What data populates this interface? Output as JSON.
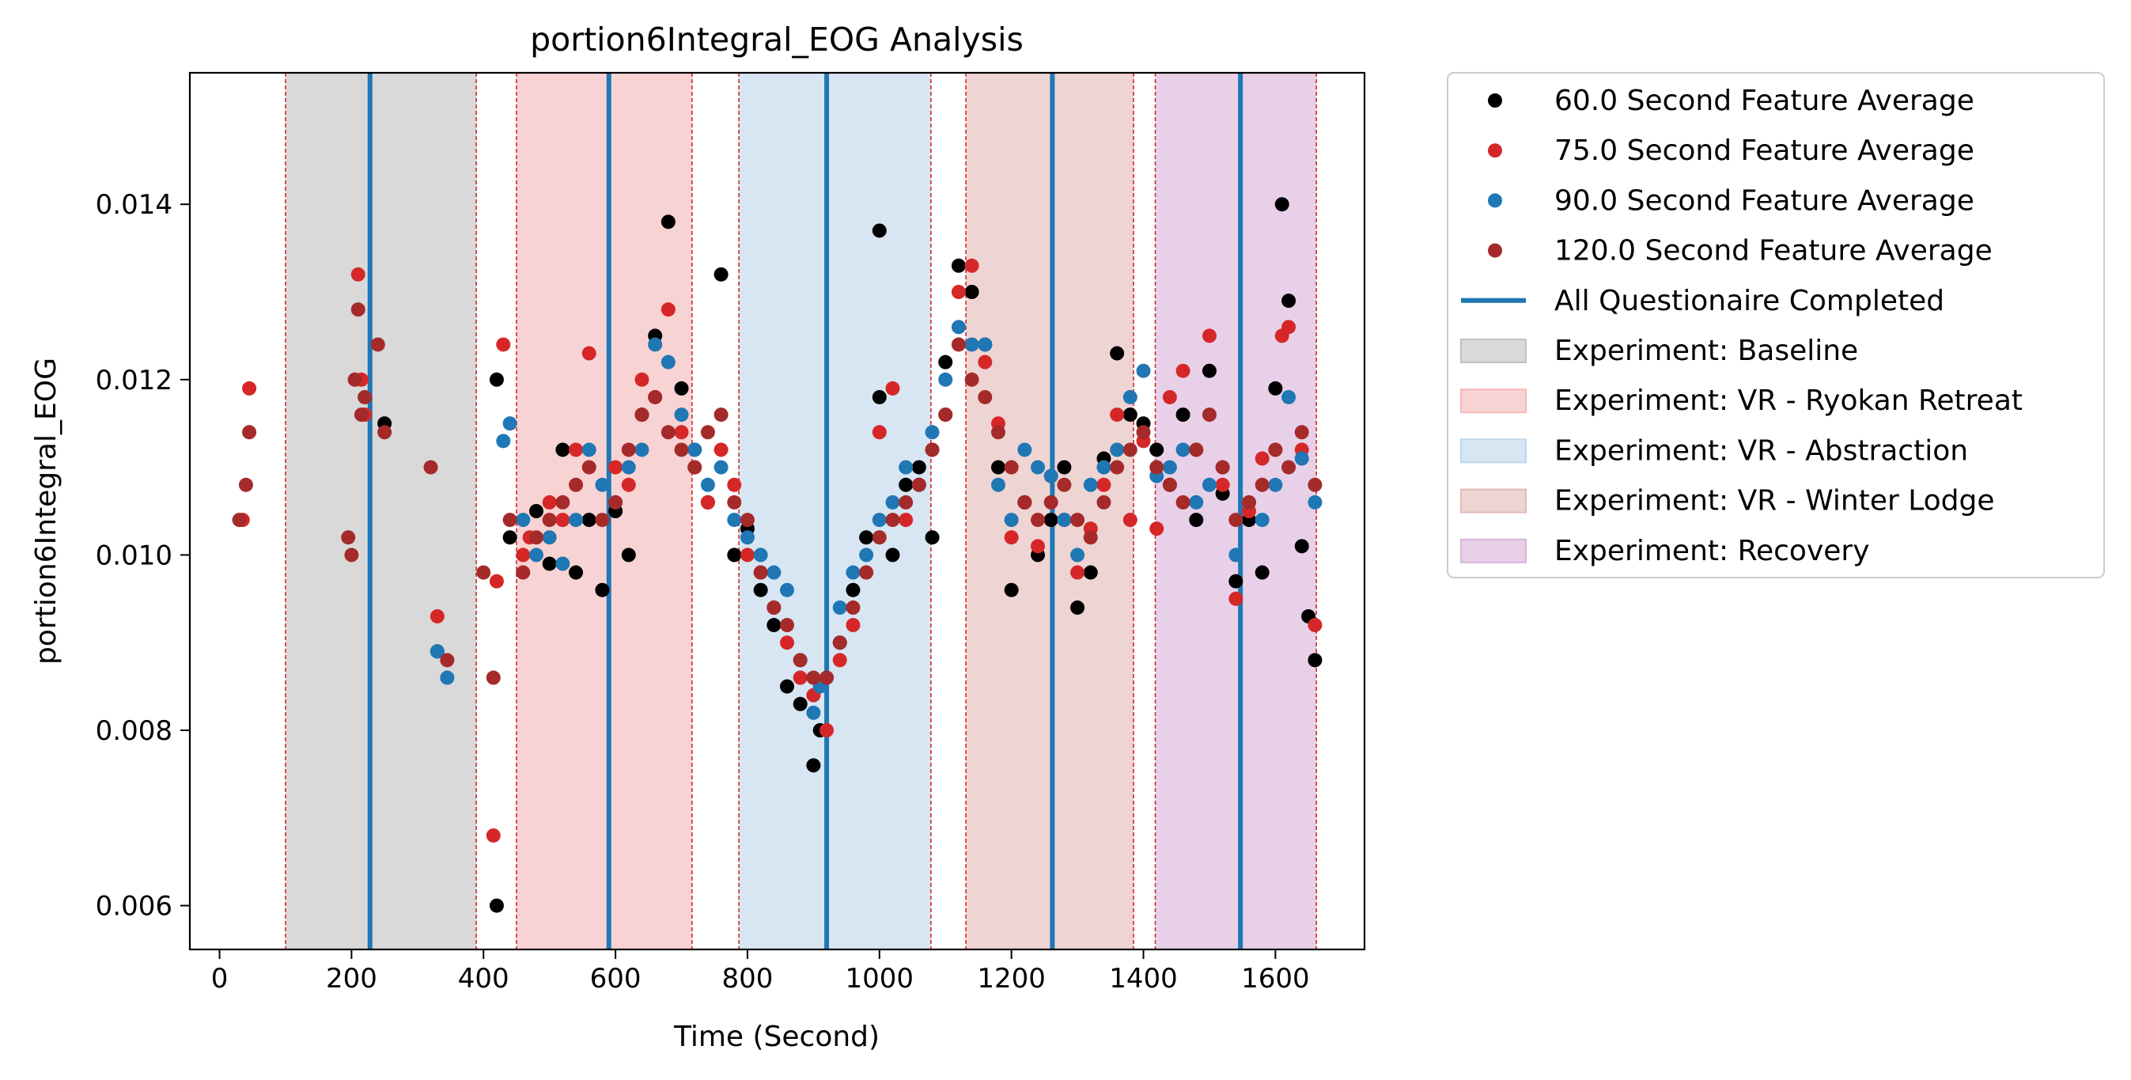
{
  "chart_data": {
    "type": "scatter",
    "title": "portion6Integral_EOG Analysis",
    "xlabel": "Time (Second)",
    "ylabel": "portion6Integral_EOG",
    "xlim": [
      -45,
      1735
    ],
    "ylim": [
      0.0055,
      0.0155
    ],
    "xticks": [
      0,
      200,
      400,
      600,
      800,
      1000,
      1200,
      1400,
      1600
    ],
    "xtick_labels": [
      "0",
      "200",
      "400",
      "600",
      "800",
      "1000",
      "1200",
      "1400",
      "1600"
    ],
    "yticks": [
      0.006,
      0.008,
      0.01,
      0.012,
      0.014
    ],
    "ytick_labels": [
      "0.006",
      "0.008",
      "0.010",
      "0.012",
      "0.014"
    ],
    "grid": false,
    "legend_position": "outside-right",
    "legend": [
      {
        "label": "60.0 Second Feature Average",
        "kind": "marker",
        "color": "#000000"
      },
      {
        "label": "75.0 Second Feature Average",
        "kind": "marker",
        "color": "#d62728"
      },
      {
        "label": "90.0 Second Feature Average",
        "kind": "marker",
        "color": "#1f77b4"
      },
      {
        "label": "120.0 Second Feature Average",
        "kind": "marker",
        "color": "#a52a2a"
      },
      {
        "label": "All Questionaire Completed",
        "kind": "line",
        "color": "#1f77b4"
      },
      {
        "label": "Experiment: Baseline",
        "kind": "patch",
        "color": "#bfbfbf"
      },
      {
        "label": "Experiment: VR - Ryokan Retreat",
        "kind": "patch",
        "color": "#f4b6b8"
      },
      {
        "label": "Experiment: VR - Abstraction",
        "kind": "patch",
        "color": "#bcd6ea"
      },
      {
        "label": "Experiment: VR - Winter Lodge",
        "kind": "patch",
        "color": "#e2b9b6"
      },
      {
        "label": "Experiment: Recovery",
        "kind": "patch",
        "color": "#d9b3d9"
      }
    ],
    "regions": [
      {
        "name": "Experiment: Baseline",
        "start": 100,
        "end": 389,
        "color": "#bfbfbf"
      },
      {
        "name": "Experiment: VR - Ryokan Retreat",
        "start": 450,
        "end": 716,
        "color": "#f4b6b8"
      },
      {
        "name": "Experiment: VR - Abstraction",
        "start": 787,
        "end": 1078,
        "color": "#bcd6ea"
      },
      {
        "name": "Experiment: VR - Winter Lodge",
        "start": 1131,
        "end": 1385,
        "color": "#e2b9b6"
      },
      {
        "name": "Experiment: Recovery",
        "start": 1418,
        "end": 1662,
        "color": "#d9b3d9"
      }
    ],
    "questionnaire_lines": [
      228,
      590,
      920,
      1262,
      1547
    ],
    "series": [
      {
        "name": "60.0 Second Feature Average",
        "color": "#000000",
        "x": [
          250,
          330,
          420,
          420,
          440,
          480,
          500,
          520,
          540,
          560,
          580,
          600,
          620,
          640,
          660,
          680,
          700,
          720,
          740,
          760,
          780,
          800,
          820,
          840,
          860,
          880,
          900,
          910,
          940,
          960,
          980,
          1000,
          1000,
          1020,
          1040,
          1060,
          1080,
          1100,
          1120,
          1140,
          1160,
          1180,
          1200,
          1220,
          1240,
          1260,
          1280,
          1300,
          1320,
          1340,
          1360,
          1380,
          1400,
          1420,
          1440,
          1460,
          1480,
          1500,
          1520,
          1540,
          1560,
          1580,
          1600,
          1610,
          1620,
          1640,
          1650,
          1660
        ],
        "y": [
          0.0115,
          0.0089,
          0.006,
          0.012,
          0.0102,
          0.0105,
          0.0099,
          0.0112,
          0.0098,
          0.0104,
          0.0096,
          0.0105,
          0.01,
          0.0116,
          0.0125,
          0.0138,
          0.0119,
          0.0112,
          0.0106,
          0.0132,
          0.01,
          0.0103,
          0.0096,
          0.0092,
          0.0085,
          0.0083,
          0.0076,
          0.008,
          0.009,
          0.0096,
          0.0102,
          0.0137,
          0.0118,
          0.01,
          0.0108,
          0.011,
          0.0102,
          0.0122,
          0.0133,
          0.013,
          0.0124,
          0.011,
          0.0096,
          0.0106,
          0.01,
          0.0104,
          0.011,
          0.0094,
          0.0098,
          0.0111,
          0.0123,
          0.0116,
          0.0115,
          0.0112,
          0.0108,
          0.0116,
          0.0104,
          0.0121,
          0.0107,
          0.0097,
          0.0104,
          0.0098,
          0.0119,
          0.014,
          0.0129,
          0.0101,
          0.0093,
          0.0088
        ]
      },
      {
        "name": "75.0 Second Feature Average",
        "color": "#d62728",
        "x": [
          35,
          45,
          210,
          215,
          220,
          330,
          415,
          420,
          430,
          460,
          470,
          500,
          520,
          540,
          560,
          600,
          620,
          640,
          660,
          680,
          700,
          720,
          740,
          760,
          780,
          800,
          820,
          840,
          860,
          880,
          900,
          920,
          940,
          960,
          980,
          1000,
          1020,
          1040,
          1060,
          1080,
          1100,
          1120,
          1140,
          1160,
          1180,
          1200,
          1220,
          1240,
          1260,
          1280,
          1300,
          1320,
          1340,
          1360,
          1380,
          1400,
          1420,
          1440,
          1460,
          1480,
          1500,
          1520,
          1540,
          1560,
          1580,
          1600,
          1610,
          1620,
          1640,
          1660
        ],
        "y": [
          0.0104,
          0.0119,
          0.0132,
          0.012,
          0.0116,
          0.0093,
          0.0068,
          0.0097,
          0.0124,
          0.01,
          0.0102,
          0.0106,
          0.0104,
          0.0112,
          0.0123,
          0.011,
          0.0108,
          0.012,
          0.0118,
          0.0128,
          0.0114,
          0.011,
          0.0106,
          0.0112,
          0.0108,
          0.01,
          0.0098,
          0.0094,
          0.009,
          0.0086,
          0.0084,
          0.008,
          0.0088,
          0.0092,
          0.0098,
          0.0114,
          0.0119,
          0.0104,
          0.0108,
          0.0112,
          0.0116,
          0.013,
          0.0133,
          0.0122,
          0.0115,
          0.0102,
          0.0106,
          0.0101,
          0.0109,
          0.0104,
          0.0098,
          0.0103,
          0.0108,
          0.0116,
          0.0104,
          0.0113,
          0.0103,
          0.0118,
          0.0121,
          0.0112,
          0.0125,
          0.0108,
          0.0095,
          0.0105,
          0.0111,
          0.0112,
          0.0125,
          0.0126,
          0.0112,
          0.0092
        ]
      },
      {
        "name": "90.0 Second Feature Average",
        "color": "#1f77b4",
        "x": [
          330,
          345,
          430,
          440,
          460,
          480,
          500,
          520,
          540,
          560,
          580,
          600,
          620,
          640,
          660,
          680,
          700,
          720,
          740,
          760,
          780,
          800,
          820,
          840,
          860,
          880,
          900,
          910,
          920,
          940,
          960,
          980,
          1000,
          1020,
          1040,
          1060,
          1080,
          1100,
          1120,
          1140,
          1160,
          1180,
          1200,
          1220,
          1240,
          1260,
          1280,
          1300,
          1320,
          1340,
          1360,
          1380,
          1400,
          1420,
          1440,
          1460,
          1480,
          1500,
          1520,
          1540,
          1560,
          1580,
          1600,
          1620,
          1640,
          1660
        ],
        "y": [
          0.0089,
          0.0086,
          0.0113,
          0.0115,
          0.0104,
          0.01,
          0.0102,
          0.0099,
          0.0104,
          0.0112,
          0.0108,
          0.0106,
          0.011,
          0.0112,
          0.0124,
          0.0122,
          0.0116,
          0.0112,
          0.0108,
          0.011,
          0.0104,
          0.0102,
          0.01,
          0.0098,
          0.0096,
          0.0088,
          0.0082,
          0.0085,
          0.0086,
          0.0094,
          0.0098,
          0.01,
          0.0104,
          0.0106,
          0.011,
          0.0108,
          0.0114,
          0.012,
          0.0126,
          0.0124,
          0.0124,
          0.0108,
          0.0104,
          0.0112,
          0.011,
          0.0109,
          0.0104,
          0.01,
          0.0108,
          0.011,
          0.0112,
          0.0118,
          0.0121,
          0.0109,
          0.011,
          0.0112,
          0.0106,
          0.0108,
          0.011,
          0.01,
          0.0106,
          0.0104,
          0.0108,
          0.0118,
          0.0111,
          0.0106
        ]
      },
      {
        "name": "120.0 Second Feature Average",
        "color": "#a52a2a",
        "x": [
          30,
          40,
          45,
          195,
          200,
          205,
          210,
          215,
          220,
          240,
          250,
          320,
          345,
          400,
          415,
          440,
          460,
          480,
          500,
          520,
          540,
          560,
          580,
          600,
          620,
          640,
          660,
          680,
          700,
          720,
          740,
          760,
          780,
          800,
          820,
          840,
          860,
          880,
          900,
          920,
          940,
          960,
          980,
          1000,
          1020,
          1040,
          1060,
          1080,
          1100,
          1120,
          1140,
          1160,
          1180,
          1200,
          1220,
          1240,
          1260,
          1280,
          1300,
          1320,
          1340,
          1360,
          1380,
          1400,
          1420,
          1440,
          1460,
          1480,
          1500,
          1520,
          1540,
          1560,
          1580,
          1600,
          1620,
          1640,
          1660
        ],
        "y": [
          0.0104,
          0.0108,
          0.0114,
          0.0102,
          0.01,
          0.012,
          0.0128,
          0.0116,
          0.0118,
          0.0124,
          0.0114,
          0.011,
          0.0088,
          0.0098,
          0.0086,
          0.0104,
          0.0098,
          0.0102,
          0.0104,
          0.0106,
          0.0108,
          0.011,
          0.0104,
          0.0106,
          0.0112,
          0.0116,
          0.0118,
          0.0114,
          0.0112,
          0.011,
          0.0114,
          0.0116,
          0.0106,
          0.0104,
          0.0098,
          0.0094,
          0.0092,
          0.0088,
          0.0086,
          0.0086,
          0.009,
          0.0094,
          0.0098,
          0.0102,
          0.0104,
          0.0106,
          0.0108,
          0.0112,
          0.0116,
          0.0124,
          0.012,
          0.0118,
          0.0114,
          0.011,
          0.0106,
          0.0104,
          0.0106,
          0.0108,
          0.0104,
          0.0102,
          0.0106,
          0.011,
          0.0112,
          0.0114,
          0.011,
          0.0108,
          0.0106,
          0.0112,
          0.0116,
          0.011,
          0.0104,
          0.0106,
          0.0108,
          0.0112,
          0.011,
          0.0114,
          0.0108
        ]
      }
    ]
  }
}
